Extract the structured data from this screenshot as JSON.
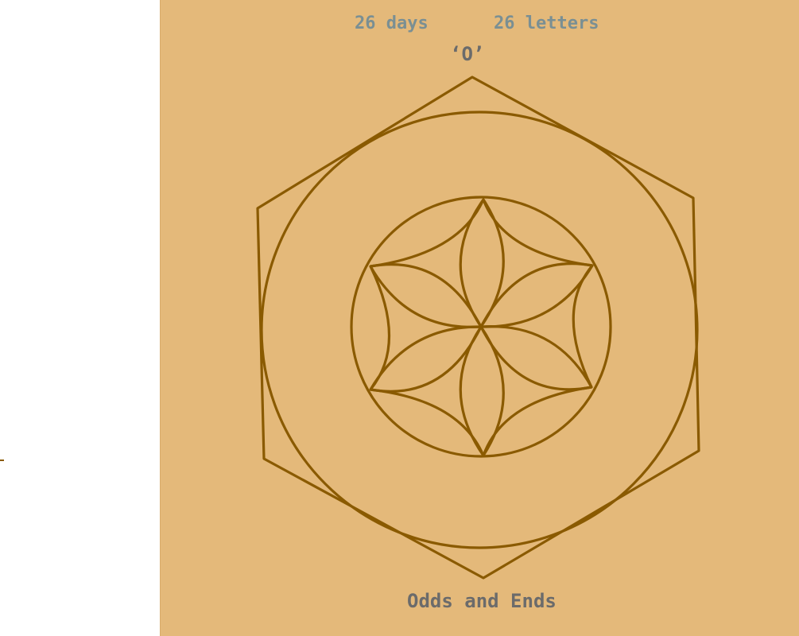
{
  "header": {
    "days_text": "26 days",
    "letters_text": "26 letters"
  },
  "letter": {
    "label": "‘O’"
  },
  "footer": {
    "title": "Odds and Ends"
  },
  "colors": {
    "panel_background": "#e4b97a",
    "line": "#8a5a00",
    "header_text": "#7a8f93",
    "label_text": "#6b6b6b"
  },
  "emblem": {
    "shapes": [
      "hexagon",
      "outer-circle",
      "inner-circle",
      "six-petal-rosette"
    ]
  }
}
